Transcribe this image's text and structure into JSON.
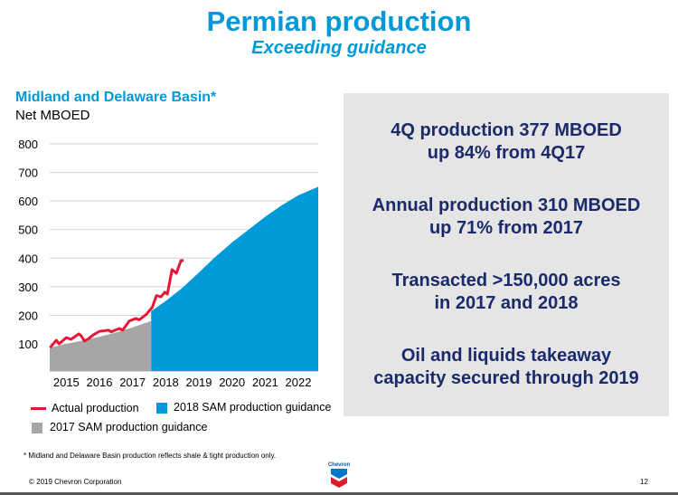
{
  "header": {
    "title": "Permian production",
    "subtitle": "Exceeding guidance"
  },
  "chart_data": {
    "type": "area",
    "title": "Midland and Delaware Basin*",
    "ylabel": "Net MBOED",
    "xlabel": "",
    "ylim": [
      0,
      800
    ],
    "xlim": [
      2015.0,
      2023.1
    ],
    "yticks": [
      100,
      200,
      300,
      400,
      500,
      600,
      700,
      800
    ],
    "xticks": [
      "2015",
      "2016",
      "2017",
      "2018",
      "2019",
      "2020",
      "2021",
      "2022"
    ],
    "grid": true,
    "legend_position": "bottom",
    "series": [
      {
        "name": "Actual production",
        "type": "line",
        "color": "#e31837",
        "x": [
          2015.01,
          2015.2,
          2015.28,
          2015.5,
          2015.64,
          2015.88,
          2015.95,
          2016.05,
          2016.17,
          2016.32,
          2016.5,
          2016.78,
          2016.85,
          2017.1,
          2017.2,
          2017.4,
          2017.6,
          2017.7,
          2017.93,
          2018.01,
          2018.09,
          2018.22,
          2018.36,
          2018.47,
          2018.55,
          2018.69,
          2018.82,
          2018.96,
          2019.04
        ],
        "y": [
          87,
          113,
          100,
          122,
          116,
          135,
          128,
          110,
          118,
          132,
          144,
          148,
          142,
          154,
          148,
          180,
          189,
          184,
          205,
          217,
          227,
          269,
          265,
          281,
          274,
          360,
          347,
          392,
          392
        ]
      },
      {
        "name": "2017 SAM production guidance",
        "type": "area",
        "color": "#a6a6a6",
        "x": [
          2015.0,
          2015.5,
          2016.0,
          2016.5,
          2017.0,
          2017.5,
          2018.06
        ],
        "y": [
          87,
          100,
          112,
          125,
          140,
          158,
          180
        ]
      },
      {
        "name": "2018 SAM production guidance",
        "type": "area",
        "color": "#009ad7",
        "x": [
          2018.06,
          2018.5,
          2019.0,
          2019.5,
          2020.0,
          2020.5,
          2021.0,
          2021.5,
          2022.0,
          2022.5,
          2023.1
        ],
        "y": [
          215,
          250,
          296,
          350,
          405,
          455,
          500,
          545,
          585,
          620,
          650
        ]
      }
    ]
  },
  "panel": {
    "messages": [
      [
        "4Q production 377 MBOED",
        "up 84% from 4Q17"
      ],
      [
        "Annual production 310 MBOED",
        "up 71% from 2017"
      ],
      [
        "Transacted >150,000 acres",
        "in 2017 and 2018"
      ],
      [
        "Oil and liquids takeaway",
        "capacity secured through 2019"
      ]
    ]
  },
  "footer": {
    "footnote": "* Midland and Delaware Basin production reflects shale & tight production only.",
    "copyright": "© 2019 Chevron Corporation",
    "page": "12",
    "logo_text": "Chevron"
  }
}
